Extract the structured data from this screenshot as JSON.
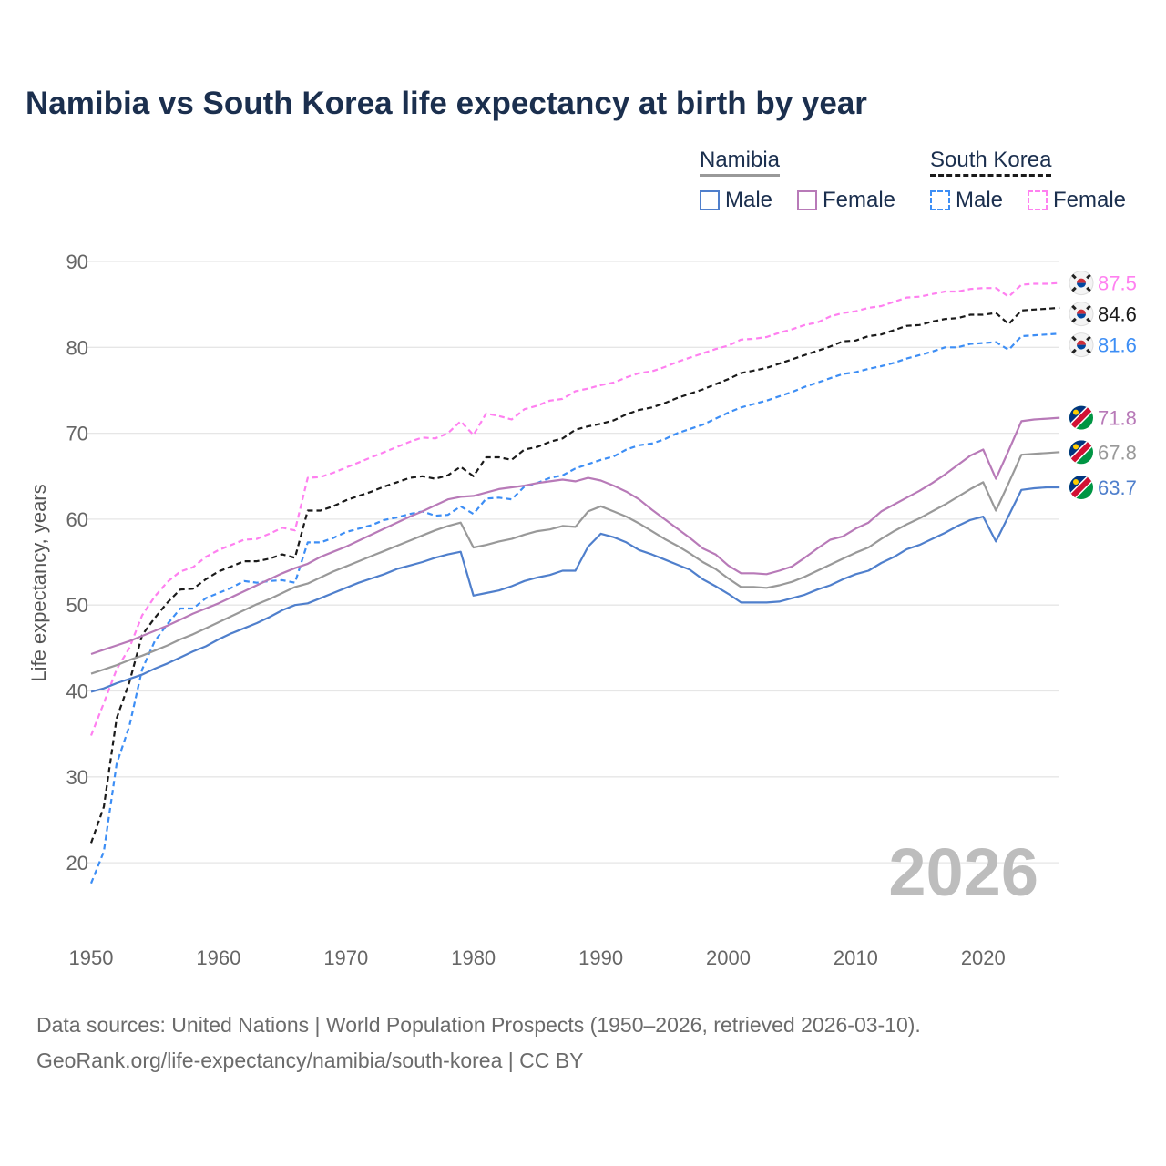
{
  "chart_data": {
    "type": "line",
    "title": "Namibia vs South Korea life expectancy at birth by year",
    "xlabel": "",
    "ylabel": "Life expectancy, years",
    "xlim": [
      1950,
      2026
    ],
    "ylim": [
      15,
      95
    ],
    "x_ticks": [
      1950,
      1960,
      1970,
      1980,
      1990,
      2000,
      2010,
      2020
    ],
    "y_ticks": [
      20,
      30,
      40,
      50,
      60,
      70,
      80,
      90
    ],
    "grid": true,
    "year_label": "2026",
    "x_start": 1950,
    "legend": {
      "namibia": {
        "title": "Namibia",
        "male": "Male",
        "female": "Female"
      },
      "south_korea": {
        "title": "South Korea",
        "male": "Male",
        "female": "Female"
      }
    },
    "series": [
      {
        "name": "South Korea Female",
        "country": "south-korea",
        "color": "#ff80f0",
        "dashed": true,
        "end_label": "87.5",
        "values": [
          34.8,
          38.6,
          42.5,
          45.0,
          48.8,
          51.0,
          52.7,
          53.9,
          54.4,
          55.6,
          56.4,
          57.0,
          57.6,
          57.7,
          58.3,
          59.0,
          58.7,
          64.8,
          64.9,
          65.4,
          66.0,
          66.6,
          67.2,
          67.8,
          68.4,
          69.0,
          69.5,
          69.4,
          70.0,
          71.4,
          69.8,
          72.3,
          72.0,
          71.6,
          72.8,
          73.2,
          73.8,
          74.0,
          74.9,
          75.2,
          75.6,
          75.9,
          76.5,
          77.0,
          77.2,
          77.7,
          78.3,
          78.8,
          79.3,
          79.8,
          80.2,
          80.9,
          81.0,
          81.2,
          81.7,
          82.1,
          82.6,
          82.9,
          83.6,
          84.0,
          84.2,
          84.6,
          84.8,
          85.3,
          85.8,
          85.9,
          86.2,
          86.5,
          86.5,
          86.8,
          86.9,
          86.9,
          85.9,
          87.3,
          87.4,
          87.4,
          87.5
        ]
      },
      {
        "name": "South Korea",
        "country": "south-korea",
        "color": "#1a1a1a",
        "dashed": true,
        "end_label": "84.6",
        "values": [
          22.3,
          26.5,
          36.8,
          41.0,
          46.5,
          48.5,
          50.3,
          51.8,
          51.9,
          53.0,
          53.9,
          54.5,
          55.1,
          55.1,
          55.4,
          55.9,
          55.5,
          61.0,
          61.0,
          61.5,
          62.2,
          62.7,
          63.2,
          63.8,
          64.3,
          64.8,
          65.0,
          64.7,
          65.1,
          66.1,
          65.0,
          67.2,
          67.2,
          66.9,
          68.1,
          68.4,
          69.0,
          69.4,
          70.4,
          70.8,
          71.1,
          71.5,
          72.2,
          72.7,
          73.0,
          73.5,
          74.1,
          74.6,
          75.1,
          75.7,
          76.3,
          77.0,
          77.3,
          77.6,
          78.1,
          78.6,
          79.1,
          79.6,
          80.1,
          80.7,
          80.8,
          81.3,
          81.5,
          82.0,
          82.5,
          82.6,
          83.0,
          83.3,
          83.4,
          83.8,
          83.8,
          84.0,
          82.7,
          84.3,
          84.4,
          84.5,
          84.6
        ]
      },
      {
        "name": "South Korea Male",
        "country": "south-korea",
        "color": "#3d8ef5",
        "dashed": true,
        "end_label": "81.6",
        "values": [
          17.6,
          21.3,
          31.5,
          35.9,
          42.5,
          45.8,
          47.8,
          49.6,
          49.6,
          50.8,
          51.4,
          52.0,
          52.8,
          52.6,
          52.8,
          52.9,
          52.6,
          57.3,
          57.3,
          57.8,
          58.5,
          58.9,
          59.3,
          59.9,
          60.2,
          60.6,
          60.9,
          60.4,
          60.5,
          61.5,
          60.6,
          62.4,
          62.5,
          62.3,
          63.8,
          64.2,
          64.8,
          65.1,
          65.9,
          66.4,
          66.9,
          67.3,
          68.1,
          68.6,
          68.8,
          69.3,
          70.0,
          70.5,
          71.0,
          71.7,
          72.4,
          73.0,
          73.4,
          73.8,
          74.3,
          74.8,
          75.4,
          75.9,
          76.4,
          76.9,
          77.1,
          77.5,
          77.8,
          78.2,
          78.7,
          79.1,
          79.5,
          80.0,
          80.0,
          80.4,
          80.5,
          80.6,
          79.7,
          81.3,
          81.4,
          81.5,
          81.6
        ]
      },
      {
        "name": "Namibia Female",
        "country": "namibia",
        "color": "#b87ab8",
        "dashed": false,
        "end_label": "71.8",
        "values": [
          44.3,
          44.8,
          45.3,
          45.8,
          46.4,
          47.0,
          47.6,
          48.3,
          49.0,
          49.6,
          50.2,
          50.9,
          51.6,
          52.3,
          53.0,
          53.7,
          54.3,
          54.8,
          55.6,
          56.2,
          56.8,
          57.5,
          58.2,
          58.9,
          59.6,
          60.3,
          60.9,
          61.6,
          62.3,
          62.6,
          62.7,
          63.1,
          63.5,
          63.7,
          63.9,
          64.2,
          64.4,
          64.6,
          64.4,
          64.8,
          64.5,
          63.9,
          63.2,
          62.3,
          61.1,
          60.0,
          58.9,
          57.8,
          56.6,
          55.9,
          54.6,
          53.7,
          53.7,
          53.6,
          54.0,
          54.5,
          55.5,
          56.6,
          57.6,
          58.0,
          58.9,
          59.6,
          60.9,
          61.7,
          62.5,
          63.3,
          64.2,
          65.2,
          66.3,
          67.4,
          68.1,
          64.7,
          68.0,
          71.4,
          71.6,
          71.7,
          71.8
        ]
      },
      {
        "name": "Namibia",
        "country": "namibia",
        "color": "#999999",
        "dashed": false,
        "end_label": "67.8",
        "values": [
          42.0,
          42.5,
          43.0,
          43.6,
          44.1,
          44.7,
          45.3,
          46.0,
          46.6,
          47.3,
          48.0,
          48.7,
          49.4,
          50.1,
          50.7,
          51.4,
          52.1,
          52.5,
          53.2,
          53.9,
          54.5,
          55.1,
          55.7,
          56.3,
          56.9,
          57.5,
          58.1,
          58.7,
          59.2,
          59.6,
          56.7,
          57.0,
          57.4,
          57.7,
          58.2,
          58.6,
          58.8,
          59.2,
          59.1,
          60.9,
          61.5,
          60.9,
          60.3,
          59.5,
          58.6,
          57.7,
          56.9,
          56.0,
          55.0,
          54.2,
          53.1,
          52.1,
          52.1,
          52.0,
          52.3,
          52.7,
          53.3,
          54.0,
          54.7,
          55.4,
          56.1,
          56.7,
          57.7,
          58.6,
          59.4,
          60.1,
          60.9,
          61.7,
          62.6,
          63.5,
          64.3,
          61.0,
          64.2,
          67.5,
          67.6,
          67.7,
          67.8
        ]
      },
      {
        "name": "Namibia Male",
        "country": "namibia",
        "color": "#4f7fcc",
        "dashed": false,
        "end_label": "63.7",
        "values": [
          39.9,
          40.3,
          40.9,
          41.4,
          41.9,
          42.6,
          43.2,
          43.9,
          44.6,
          45.2,
          46.0,
          46.7,
          47.3,
          47.9,
          48.6,
          49.4,
          50.0,
          50.2,
          50.8,
          51.4,
          52.0,
          52.6,
          53.1,
          53.6,
          54.2,
          54.6,
          55.0,
          55.5,
          55.9,
          56.2,
          51.1,
          51.4,
          51.7,
          52.2,
          52.8,
          53.2,
          53.5,
          54.0,
          54.0,
          56.8,
          58.3,
          57.9,
          57.3,
          56.4,
          55.9,
          55.3,
          54.7,
          54.1,
          53.0,
          52.2,
          51.3,
          50.3,
          50.3,
          50.3,
          50.4,
          50.8,
          51.2,
          51.8,
          52.3,
          53.0,
          53.6,
          54.0,
          54.9,
          55.6,
          56.5,
          57.0,
          57.7,
          58.4,
          59.2,
          59.9,
          60.3,
          57.4,
          60.4,
          63.4,
          63.6,
          63.7,
          63.7
        ]
      }
    ]
  },
  "footer": {
    "line1": "Data sources: United Nations | World Population Prospects (1950–2026, retrieved 2026-03-10).",
    "line2": "GeoRank.org/life-expectancy/namibia/south-korea | CC BY"
  }
}
